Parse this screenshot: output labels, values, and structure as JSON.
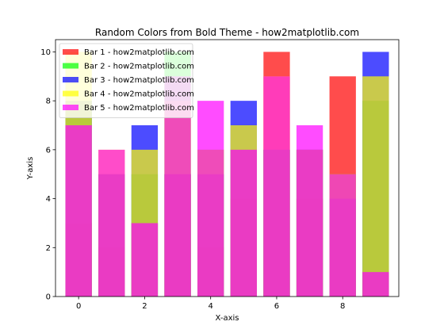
{
  "chart_data": {
    "type": "bar",
    "title": "Random Colors from Bold Theme - how2matplotlib.com",
    "xlabel": "X-axis",
    "ylabel": "Y-axis",
    "xlim": [
      -0.7,
      9.7
    ],
    "ylim": [
      0,
      10.5
    ],
    "xticks": [
      0,
      2,
      4,
      6,
      8
    ],
    "yticks": [
      0,
      2,
      4,
      6,
      8,
      10
    ],
    "x": [
      0,
      1,
      2,
      3,
      4,
      5,
      6,
      7,
      8,
      9
    ],
    "bar_width": 0.8,
    "alpha": 0.7,
    "legend_position": "top-left",
    "series": [
      {
        "name": "Bar 1 - how2matplotlib.com",
        "color": "#ff0000",
        "values": [
          3,
          2,
          3,
          5,
          2,
          4,
          10,
          4,
          9,
          1
        ]
      },
      {
        "name": "Bar 2 - how2matplotlib.com",
        "color": "#00ff00",
        "values": [
          8,
          5,
          5,
          10,
          6,
          6,
          6,
          6,
          5,
          8
        ]
      },
      {
        "name": "Bar 3 - how2matplotlib.com",
        "color": "#0000ff",
        "values": [
          8,
          5,
          7,
          5,
          5,
          8,
          6,
          6,
          4,
          10
        ]
      },
      {
        "name": "Bar 4 - how2matplotlib.com",
        "color": "#ffff00",
        "values": [
          10,
          6,
          6,
          8,
          6,
          7,
          9,
          6,
          5,
          9
        ]
      },
      {
        "name": "Bar 5 - how2matplotlib.com",
        "color": "#ff00ff",
        "values": [
          7,
          6,
          3,
          9,
          8,
          6,
          9,
          7,
          5,
          1
        ]
      }
    ]
  }
}
